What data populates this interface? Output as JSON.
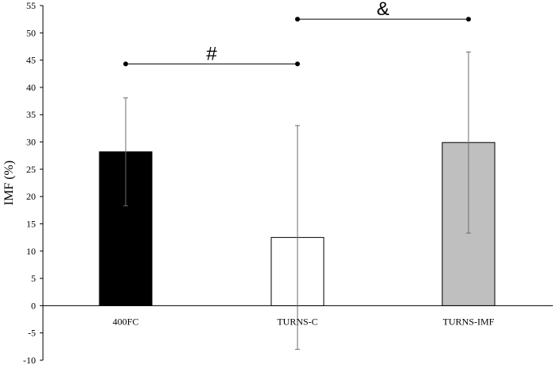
{
  "chart_data": {
    "type": "bar",
    "title": "",
    "xlabel": "",
    "ylabel": "IMF (%)",
    "ylim": [
      -10,
      55
    ],
    "ytick_step": 5,
    "grid": false,
    "categories": [
      "400FC",
      "TURNS-C",
      "TURNS-IMF"
    ],
    "values": [
      28.2,
      12.5,
      29.9
    ],
    "error_upper": [
      38.1,
      33.0,
      46.5
    ],
    "error_lower": [
      18.3,
      -8.0,
      13.3
    ],
    "bar_fill_colors": [
      "#000000",
      "#ffffff",
      "#bfbfbf"
    ],
    "bar_edge_color": "#000000",
    "significance": [
      {
        "label": "#",
        "from": "400FC",
        "to": "TURNS-C",
        "y": 44.3
      },
      {
        "label": "&",
        "from": "TURNS-C",
        "to": "TURNS-IMF",
        "y": 52.5
      }
    ]
  }
}
